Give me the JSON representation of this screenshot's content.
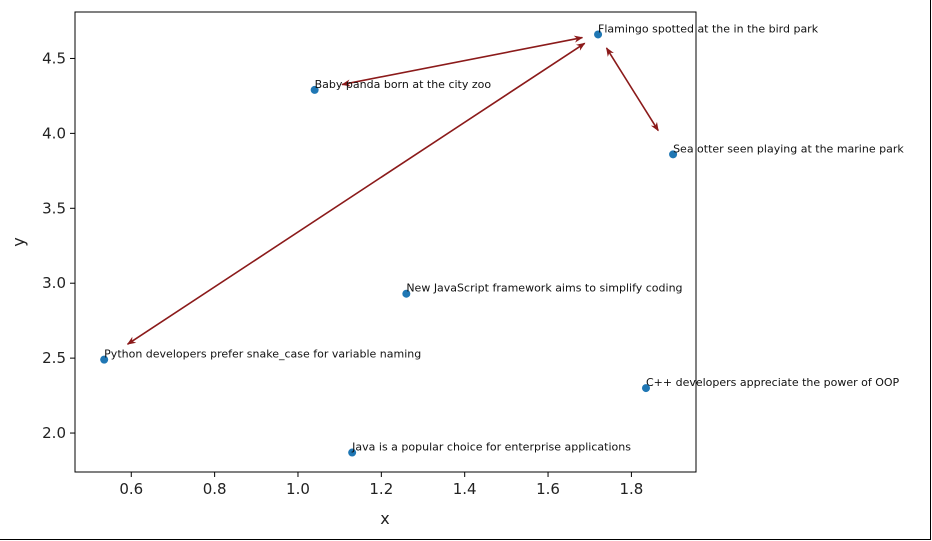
{
  "chart_data": {
    "type": "scatter",
    "title": "",
    "xlabel": "x",
    "ylabel": "y",
    "xlim": [
      0.465,
      1.955
    ],
    "ylim": [
      1.74,
      4.81
    ],
    "xticks": [
      0.6,
      0.8,
      1.0,
      1.2,
      1.4,
      1.6,
      1.8
    ],
    "xtick_labels": [
      "0.6",
      "0.8",
      "1.0",
      "1.2",
      "1.4",
      "1.6",
      "1.8"
    ],
    "yticks": [
      2.0,
      2.5,
      3.0,
      3.5,
      4.0,
      4.5
    ],
    "ytick_labels": [
      "2.0",
      "2.5",
      "3.0",
      "3.5",
      "4.0",
      "4.5"
    ],
    "grid": false,
    "point_color": "#1f77b4",
    "arrow_color": "#8b1a1a",
    "points": [
      {
        "x": 1.72,
        "y": 4.66,
        "label": "Flamingo spotted at the in the bird park"
      },
      {
        "x": 1.04,
        "y": 4.29,
        "label": "Baby panda born at the city zoo"
      },
      {
        "x": 1.9,
        "y": 3.86,
        "label": "Sea otter seen playing at the marine park"
      },
      {
        "x": 1.26,
        "y": 2.93,
        "label": "New JavaScript framework aims to simplify coding"
      },
      {
        "x": 0.535,
        "y": 2.49,
        "label": "Python developers prefer snake_case for variable naming"
      },
      {
        "x": 1.835,
        "y": 2.3,
        "label": "C++ developers appreciate the power of OOP"
      },
      {
        "x": 1.13,
        "y": 1.87,
        "label": "Java is a popular choice for enterprise applications"
      }
    ],
    "arrows": [
      {
        "from": [
          1.72,
          4.66
        ],
        "to": [
          1.04,
          4.29
        ],
        "heads": "both"
      },
      {
        "from": [
          1.72,
          4.66
        ],
        "to": [
          1.9,
          3.86
        ],
        "heads": "both"
      },
      {
        "from": [
          1.72,
          4.66
        ],
        "to": [
          0.535,
          2.49
        ],
        "heads": "both"
      }
    ]
  }
}
